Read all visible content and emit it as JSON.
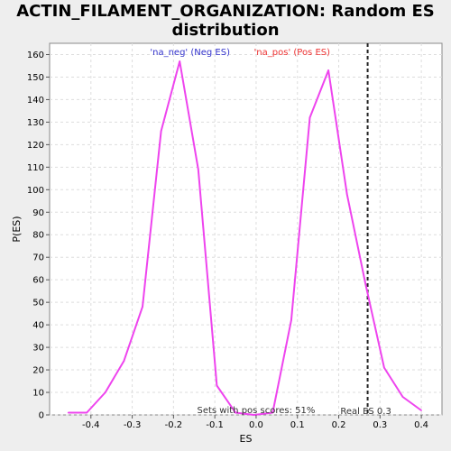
{
  "chart_data": {
    "type": "line",
    "title": "ACTIN_FILAMENT_ORGANIZATION: Random ES distribution",
    "xlabel": "ES",
    "ylabel": "P(ES)",
    "xlim": [
      -0.5,
      0.45
    ],
    "ylim": [
      0,
      165
    ],
    "x_ticks": [
      -0.4,
      -0.3,
      -0.2,
      -0.1,
      0.0,
      0.1,
      0.2,
      0.3,
      0.4
    ],
    "x_tick_labels": [
      "-0.4",
      "-0.3",
      "-0.2",
      "-0.1",
      "0.0",
      "0.1",
      "0.2",
      "0.3",
      "0.4"
    ],
    "y_ticks": [
      0,
      10,
      20,
      30,
      40,
      50,
      60,
      70,
      80,
      90,
      100,
      110,
      120,
      130,
      140,
      150,
      160
    ],
    "grid": true,
    "series": [
      {
        "name": "ES distribution",
        "color": "#ee44ee",
        "x": [
          -0.455,
          -0.41,
          -0.365,
          -0.32,
          -0.275,
          -0.23,
          -0.185,
          -0.14,
          -0.095,
          -0.05,
          -0.005,
          0.04,
          0.085,
          0.13,
          0.175,
          0.22,
          0.265,
          0.31,
          0.355,
          0.4
        ],
        "y": [
          1,
          1,
          10,
          24,
          48,
          126,
          157,
          109,
          13,
          1,
          0,
          1,
          42,
          132,
          153,
          98,
          58,
          21,
          8,
          2
        ]
      }
    ],
    "legend": [
      {
        "label": "'na_neg' (Neg ES)",
        "color": "#3333cc"
      },
      {
        "label": "'na_pos' (Pos ES)",
        "color": "#ee3333"
      }
    ],
    "legend_placement": "top",
    "real_es": {
      "value": 0.27,
      "label": "Real ES 0.3"
    },
    "annotation": "Sets with pos scores: 51%"
  }
}
